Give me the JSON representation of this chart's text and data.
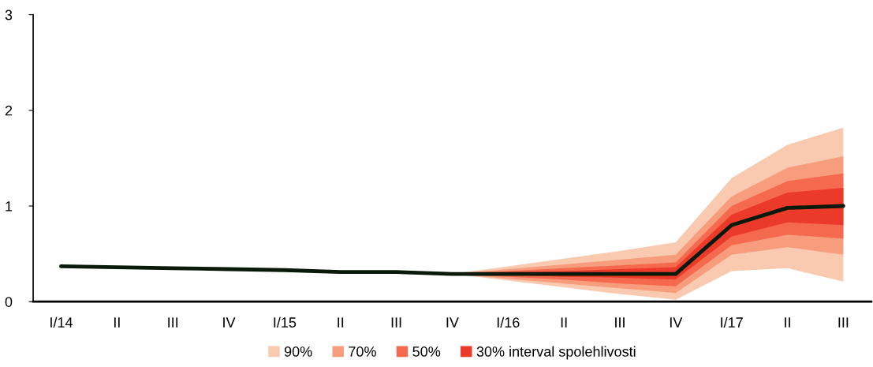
{
  "chart_data": {
    "type": "line",
    "categories": [
      "I/14",
      "II",
      "III",
      "IV",
      "I/15",
      "II",
      "III",
      "IV",
      "I/16",
      "II",
      "III",
      "IV",
      "I/17",
      "II",
      "III"
    ],
    "series": [
      {
        "type": "area",
        "name": "90%",
        "color": "#f9c9b0",
        "values": [
          null,
          null,
          null,
          null,
          null,
          null,
          null,
          null,
          null,
          null,
          null,
          null,
          null,
          null,
          null
        ],
        "lower": [
          null,
          null,
          null,
          null,
          null,
          null,
          null,
          0.29,
          0.22,
          0.15,
          0.08,
          0.02,
          0.32,
          0.35,
          0.21
        ],
        "upper": [
          null,
          null,
          null,
          null,
          null,
          null,
          null,
          0.29,
          0.37,
          0.45,
          0.53,
          0.62,
          1.29,
          1.64,
          1.82
        ]
      },
      {
        "type": "area",
        "name": "70%",
        "color": "#f79d7d",
        "values": [
          null,
          null,
          null,
          null,
          null,
          null,
          null,
          null,
          null,
          null,
          null,
          null,
          null,
          null,
          null
        ],
        "lower": [
          null,
          null,
          null,
          null,
          null,
          null,
          null,
          0.29,
          0.24,
          0.19,
          0.14,
          0.09,
          0.49,
          0.57,
          0.49
        ],
        "upper": [
          null,
          null,
          null,
          null,
          null,
          null,
          null,
          0.29,
          0.34,
          0.39,
          0.44,
          0.49,
          1.1,
          1.4,
          1.52
        ]
      },
      {
        "type": "area",
        "name": "50%",
        "color": "#f56a4e",
        "values": [
          null,
          null,
          null,
          null,
          null,
          null,
          null,
          null,
          null,
          null,
          null,
          null,
          null,
          null,
          null
        ],
        "lower": [
          null,
          null,
          null,
          null,
          null,
          null,
          null,
          0.29,
          0.26,
          0.23,
          0.19,
          0.16,
          0.59,
          0.7,
          0.66
        ],
        "upper": [
          null,
          null,
          null,
          null,
          null,
          null,
          null,
          0.29,
          0.32,
          0.35,
          0.38,
          0.41,
          1.0,
          1.26,
          1.34
        ]
      },
      {
        "type": "area",
        "name": "30% interval spolehlivosti",
        "color": "#ec3a2a",
        "values": [
          null,
          null,
          null,
          null,
          null,
          null,
          null,
          null,
          null,
          null,
          null,
          null,
          null,
          null,
          null
        ],
        "lower": [
          null,
          null,
          null,
          null,
          null,
          null,
          null,
          0.29,
          0.28,
          0.26,
          0.25,
          0.23,
          0.68,
          0.83,
          0.8
        ],
        "upper": [
          null,
          null,
          null,
          null,
          null,
          null,
          null,
          0.29,
          0.31,
          0.32,
          0.34,
          0.36,
          0.91,
          1.14,
          1.19
        ]
      },
      {
        "color": "#0a1a0a",
        "values": [
          0.37,
          0.36,
          0.35,
          0.34,
          0.33,
          0.31,
          0.31,
          0.29,
          0.29,
          0.29,
          0.29,
          0.29,
          0.8,
          0.98,
          1.0
        ]
      }
    ],
    "ylim": [
      0,
      3
    ],
    "yticks": [
      0,
      1,
      2,
      3
    ],
    "grid": false,
    "legend": "bottom",
    "marker": "none",
    "line_style": "solid"
  }
}
